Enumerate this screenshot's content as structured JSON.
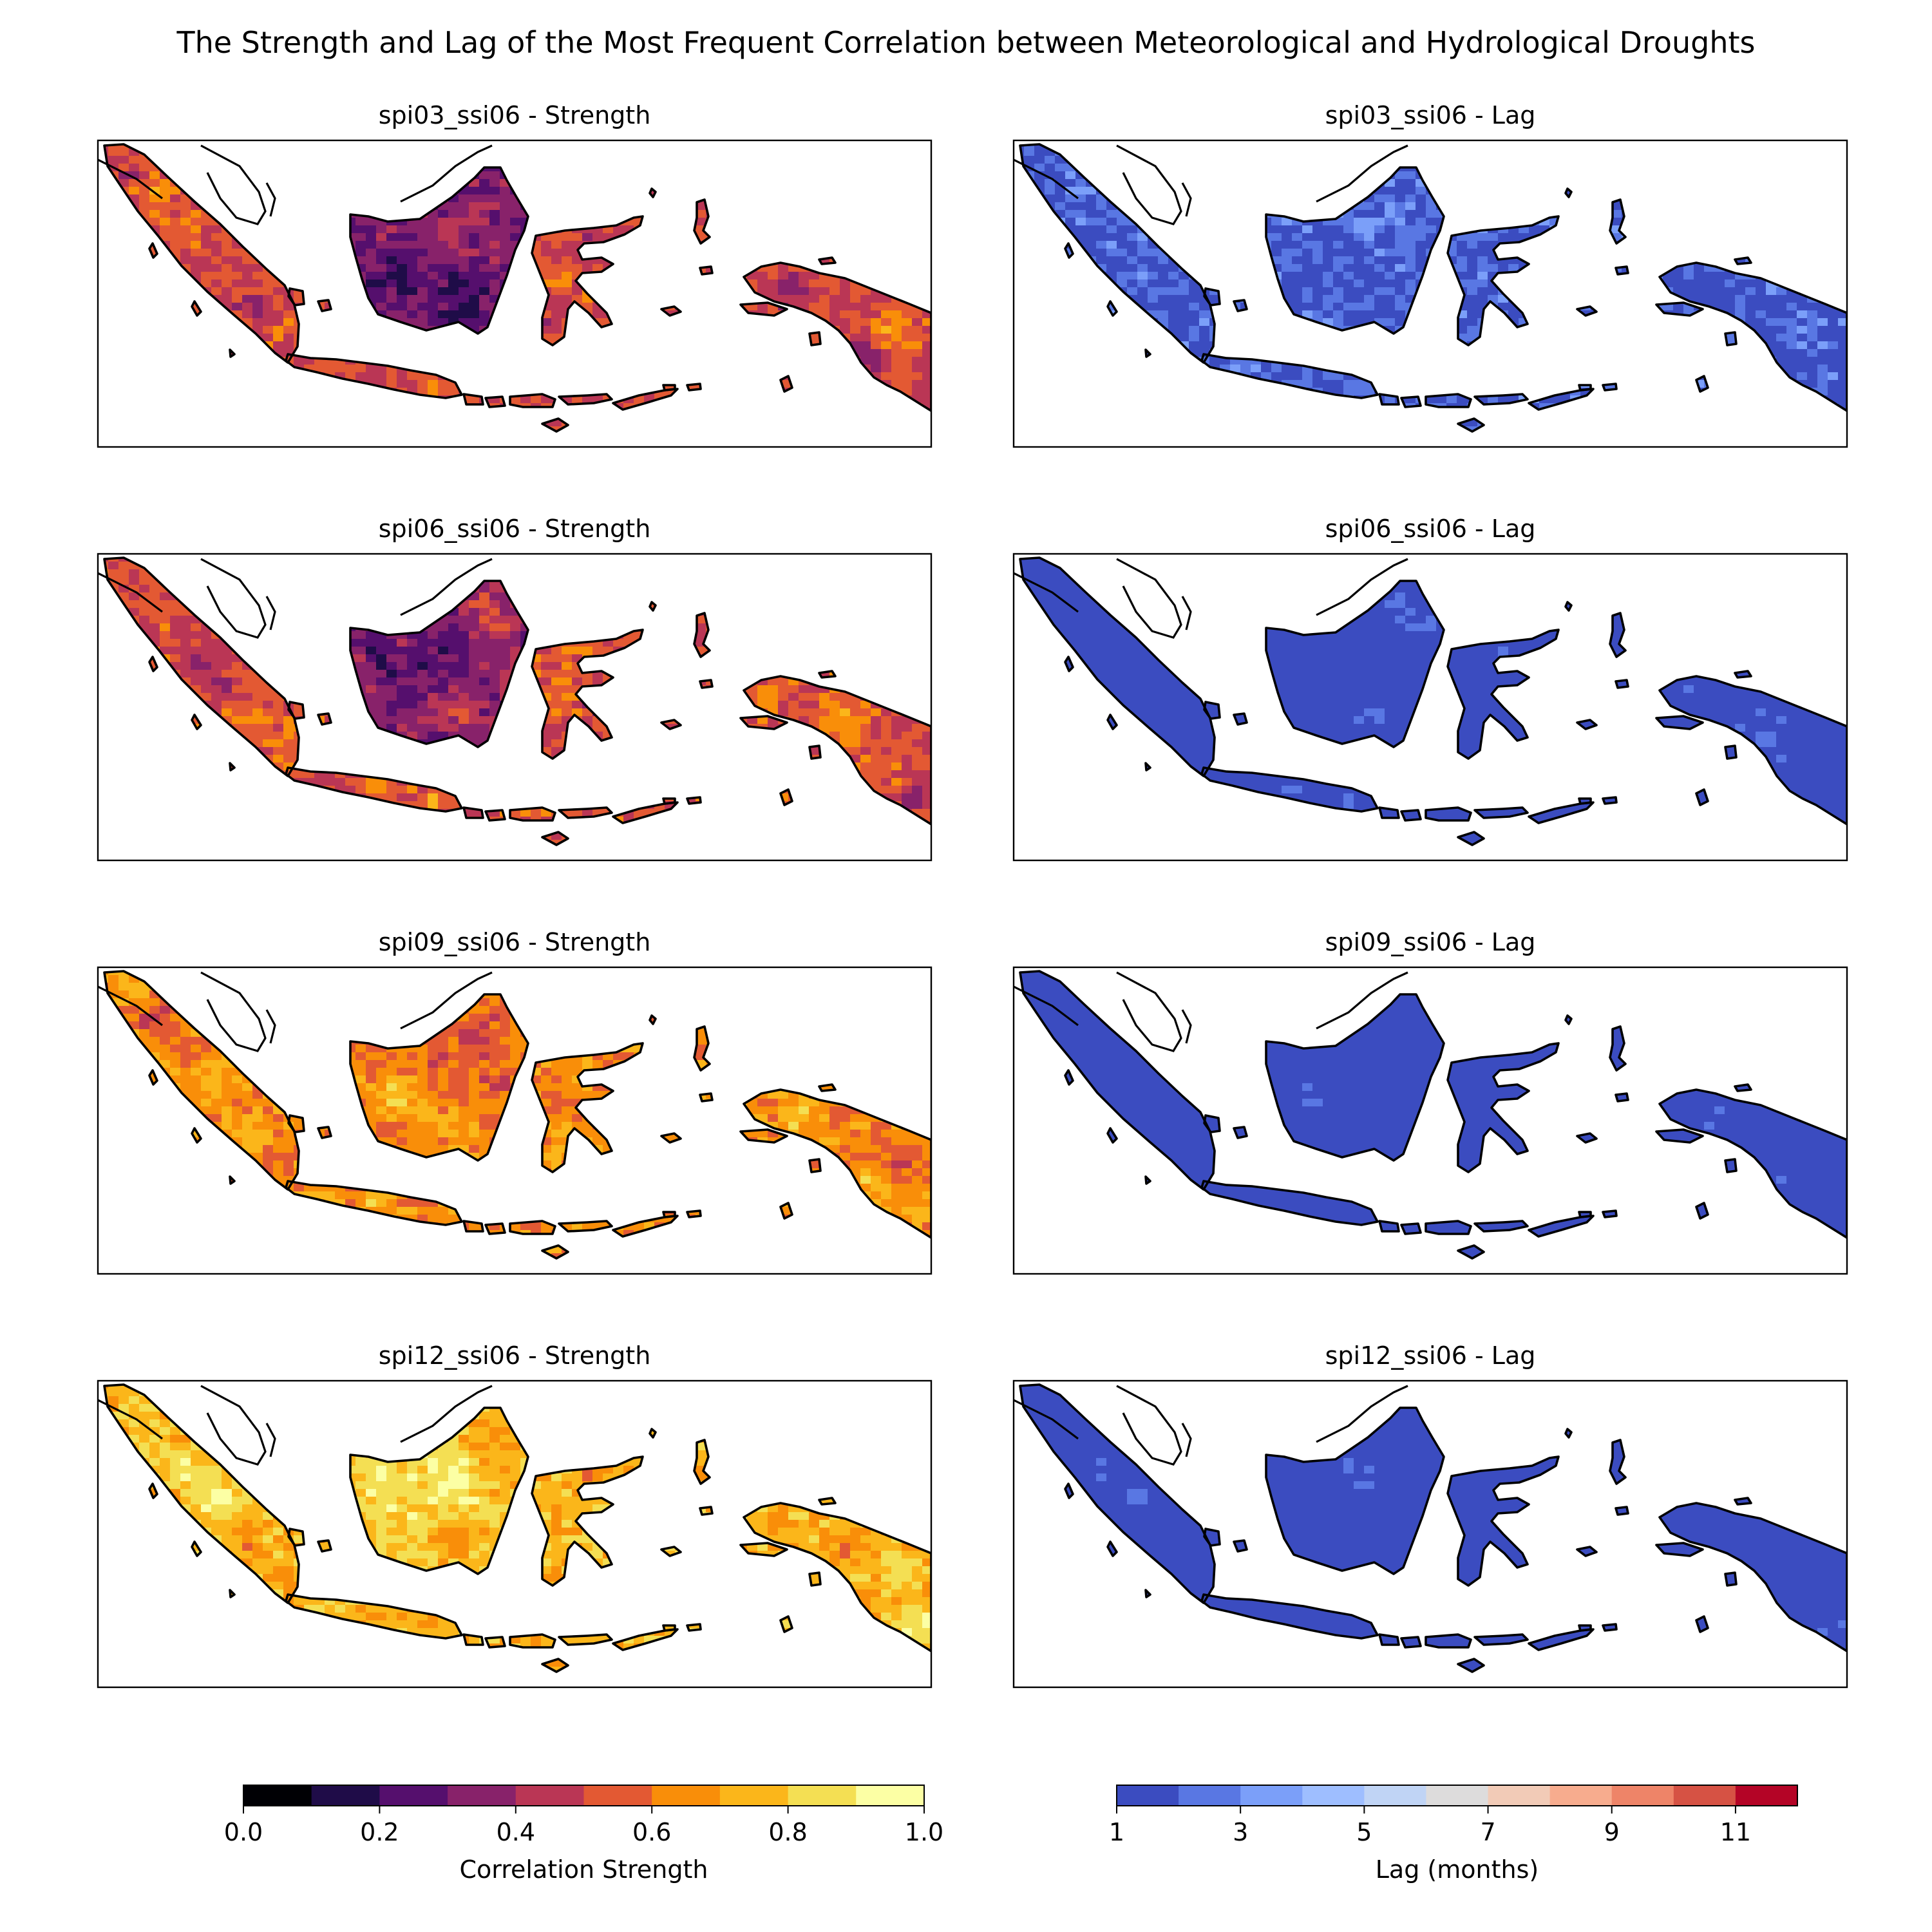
{
  "figure": {
    "title": "The Strength and Lag of the Most Frequent Correlation between Meteorological and Hydrological Droughts"
  },
  "panels": [
    {
      "title": "spi03_ssi06 - Strength",
      "kind": "strength",
      "variant": 0
    },
    {
      "title": "spi03_ssi06 - Lag",
      "kind": "lag",
      "variant": 0
    },
    {
      "title": "spi06_ssi06 - Strength",
      "kind": "strength",
      "variant": 1
    },
    {
      "title": "spi06_ssi06 - Lag",
      "kind": "lag",
      "variant": 1
    },
    {
      "title": "spi09_ssi06 - Strength",
      "kind": "strength",
      "variant": 2
    },
    {
      "title": "spi09_ssi06 - Lag",
      "kind": "lag",
      "variant": 2
    },
    {
      "title": "spi12_ssi06 - Strength",
      "kind": "strength",
      "variant": 3
    },
    {
      "title": "spi12_ssi06 - Lag",
      "kind": "lag",
      "variant": 3
    }
  ],
  "colorbars": {
    "strength": {
      "label": "Correlation Strength",
      "colors": [
        "#000004",
        "#1f0c48",
        "#550f6d",
        "#88226a",
        "#ba3655",
        "#e35933",
        "#f98e09",
        "#fbb61a",
        "#f4df53",
        "#fcffa4"
      ],
      "ticks": [
        "0.0",
        "0.2",
        "0.4",
        "0.6",
        "0.8",
        "1.0"
      ]
    },
    "lag": {
      "label": "Lag (months)",
      "colors": [
        "#3b4cc0",
        "#5977e3",
        "#7b9ff9",
        "#9ebeff",
        "#c0d4f5",
        "#dddcdc",
        "#f2cbb7",
        "#f7ac8e",
        "#ee8468",
        "#d65244",
        "#b40426"
      ],
      "ticks": [
        "1",
        "3",
        "5",
        "7",
        "9",
        "11"
      ]
    }
  }
}
